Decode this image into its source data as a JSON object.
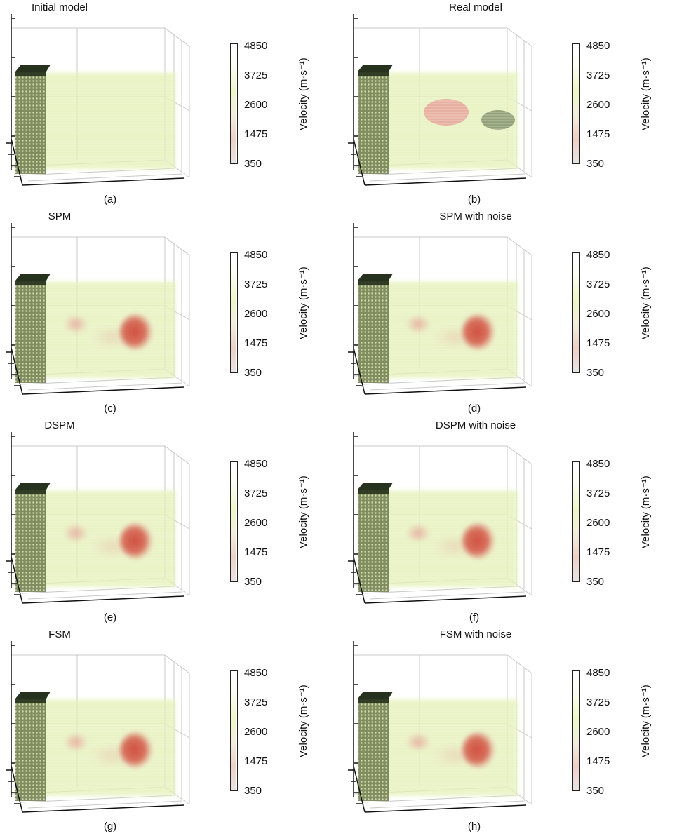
{
  "figure": {
    "colors": {
      "axis": "#111111",
      "grid": "#c8c8c8",
      "background_volume": "#e4f0b4",
      "block": "#6e7a4c",
      "block_top": "#27321e",
      "anomaly": "#d0483a",
      "anomaly_light": "#e6a39a",
      "anomaly_dark": "#6f7f59",
      "colormap": [
        "#e9e3e0",
        "#efd0c8",
        "#f3ede0",
        "#eef7c8",
        "#f8fdf0",
        "#ffffff"
      ]
    }
  },
  "chart_data": [
    {
      "type": "scatter",
      "panel_label": "(a)",
      "title": "Initial model",
      "colorbar": {
        "label": "Velocity (m·s⁻¹)",
        "ticks": [
          "4850",
          "3725",
          "2600",
          "1475",
          "350"
        ],
        "range": [
          350,
          4850
        ]
      },
      "anomalies": []
    },
    {
      "type": "scatter",
      "panel_label": "(b)",
      "title": "Real model",
      "colorbar": {
        "label": "Velocity (m·s⁻¹)",
        "ticks": [
          "4850",
          "3725",
          "2600",
          "1475",
          "350"
        ],
        "range": [
          350,
          4850
        ]
      },
      "anomalies": [
        "low-velocity ellipsoid",
        "high-velocity ellipsoid"
      ]
    },
    {
      "type": "scatter",
      "panel_label": "(c)",
      "title": "SPM",
      "colorbar": {
        "label": "Velocity (m·s⁻¹)",
        "ticks": [
          "4850",
          "3725",
          "2600",
          "1475",
          "350"
        ],
        "range": [
          350,
          4850
        ]
      },
      "anomalies": [
        "weak anomaly",
        "strong low-velocity anomaly"
      ]
    },
    {
      "type": "scatter",
      "panel_label": "(d)",
      "title": "SPM with noise",
      "colorbar": {
        "label": "Velocity (m·s⁻¹)",
        "ticks": [
          "4850",
          "3725",
          "2600",
          "1475",
          "350"
        ],
        "range": [
          350,
          4850
        ]
      },
      "anomalies": [
        "weak anomaly",
        "strong low-velocity anomaly"
      ]
    },
    {
      "type": "scatter",
      "panel_label": "(e)",
      "title": "DSPM",
      "colorbar": {
        "label": "Velocity (m·s⁻¹)",
        "ticks": [
          "4850",
          "3725",
          "2600",
          "1475",
          "350"
        ],
        "range": [
          350,
          4850
        ]
      },
      "anomalies": [
        "weak anomaly",
        "strong low-velocity anomaly"
      ]
    },
    {
      "type": "scatter",
      "panel_label": "(f)",
      "title": "DSPM with noise",
      "colorbar": {
        "label": "Velocity (m·s⁻¹)",
        "ticks": [
          "4850",
          "3725",
          "2600",
          "1475",
          "350"
        ],
        "range": [
          350,
          4850
        ]
      },
      "anomalies": [
        "weak anomaly",
        "strong low-velocity anomaly"
      ]
    },
    {
      "type": "scatter",
      "panel_label": "(g)",
      "title": "FSM",
      "colorbar": {
        "label": "Velocity (m·s⁻¹)",
        "ticks": [
          "4850",
          "3725",
          "2600",
          "1475",
          "350"
        ],
        "range": [
          350,
          4850
        ]
      },
      "anomalies": [
        "weak anomaly",
        "strong low-velocity anomaly"
      ]
    },
    {
      "type": "scatter",
      "panel_label": "(h)",
      "title": "FSM with noise",
      "colorbar": {
        "label": "Velocity (m·s⁻¹)",
        "ticks": [
          "4850",
          "3725",
          "2600",
          "1475",
          "350"
        ],
        "range": [
          350,
          4850
        ]
      },
      "anomalies": [
        "weak anomaly",
        "strong low-velocity anomaly"
      ]
    }
  ]
}
